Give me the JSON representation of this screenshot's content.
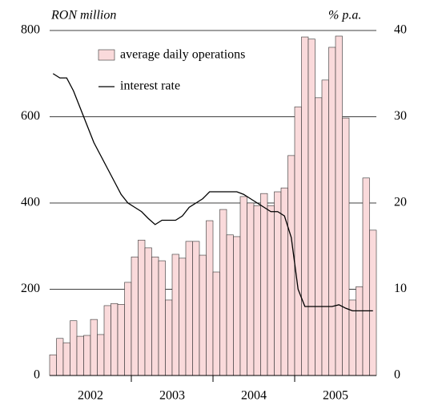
{
  "chart_data": {
    "type": "bar-line",
    "unit_left": "RON million",
    "unit_right": "% p.a.",
    "categories": [
      null,
      null,
      null,
      null,
      null,
      null,
      null,
      null,
      null,
      null,
      null,
      null,
      null,
      null,
      null,
      null,
      null,
      null,
      null,
      null,
      null,
      null,
      null,
      null,
      null,
      null,
      null,
      null,
      null,
      null,
      null,
      null,
      null,
      null,
      null,
      null,
      null,
      null,
      null,
      null,
      null,
      null,
      null,
      null,
      null,
      null,
      null,
      null
    ],
    "year_labels": [
      "2002",
      "2003",
      "2004",
      "2005"
    ],
    "series": [
      {
        "name": "average daily operations",
        "type": "bar",
        "color": "#fadadb",
        "values": [
          48,
          86,
          76,
          127,
          91,
          93,
          130,
          95,
          162,
          167,
          165,
          216,
          275,
          314,
          296,
          275,
          266,
          175,
          281,
          272,
          311,
          311,
          279,
          359,
          240,
          385,
          326,
          322,
          415,
          400,
          394,
          422,
          394,
          426,
          435,
          510,
          623,
          785,
          780,
          644,
          685,
          761,
          787,
          597,
          175,
          206,
          458,
          337
        ]
      },
      {
        "name": "interest rate",
        "type": "line",
        "axis": "y2",
        "color": "#000000",
        "values": [
          35,
          34.5,
          34.5,
          33,
          31,
          29,
          27,
          25.5,
          24,
          22.5,
          21,
          20,
          19.5,
          19,
          18.2,
          17.5,
          18,
          18,
          18,
          18.5,
          19.5,
          20,
          20.5,
          21.3,
          21.3,
          21.3,
          21.3,
          21.3,
          21,
          20.5,
          20,
          19.5,
          19,
          19,
          18.5,
          16,
          10,
          8,
          8,
          8,
          8,
          8,
          8.2,
          7.8,
          7.5,
          7.5,
          7.5,
          7.5
        ]
      }
    ],
    "ylim": [
      0,
      800
    ],
    "yticks": [
      0,
      200,
      400,
      600,
      800
    ],
    "y2lim": [
      0,
      40
    ],
    "y2ticks": [
      0,
      10,
      20,
      30,
      40
    ],
    "grid": true
  }
}
